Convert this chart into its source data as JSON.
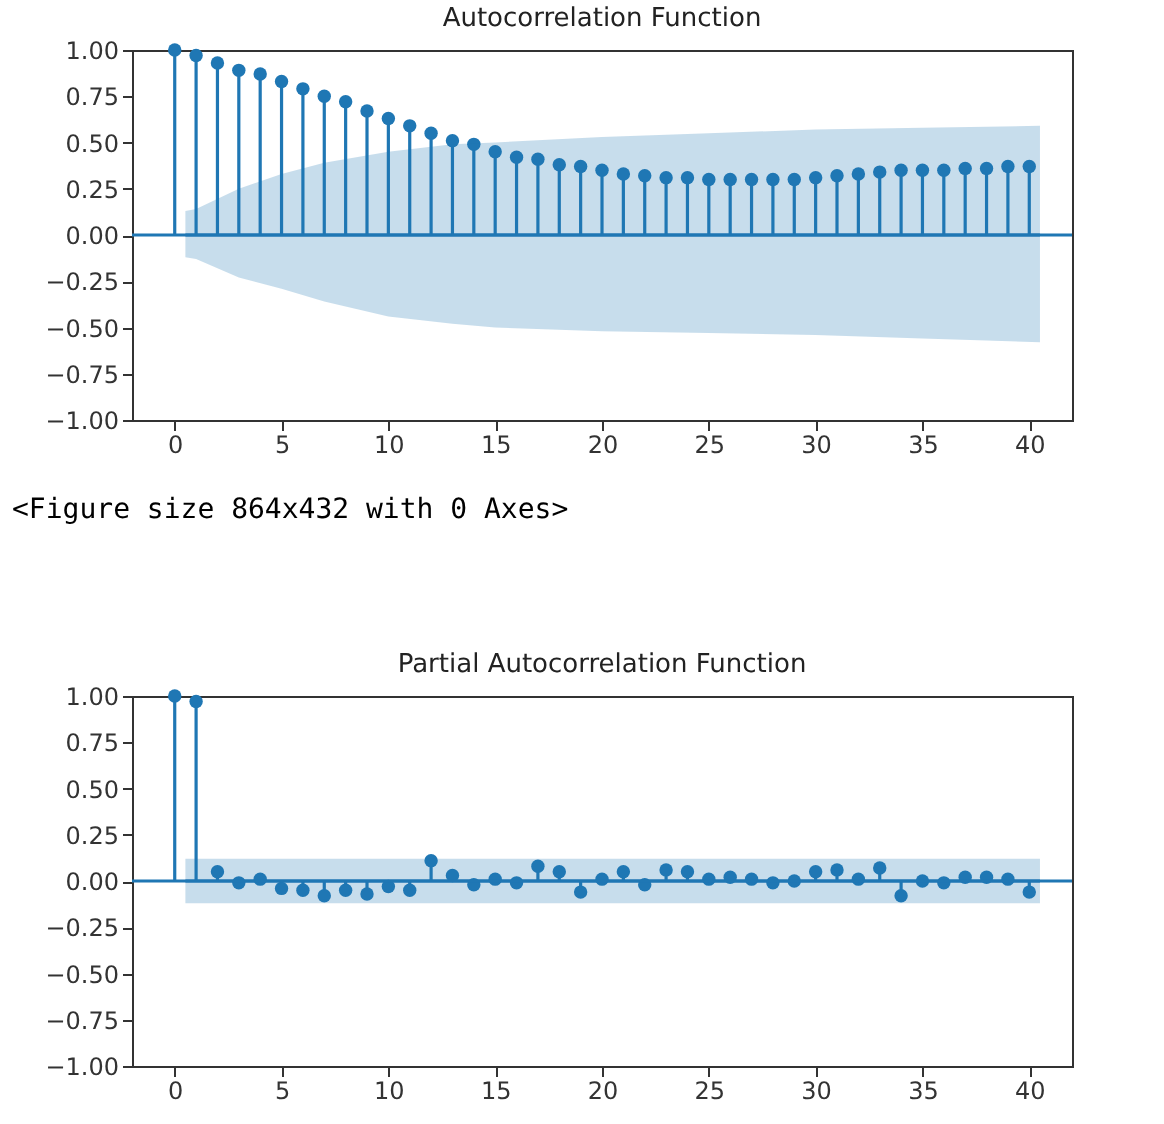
{
  "chart_data": [
    {
      "type": "lollipop",
      "title": "Autocorrelation Function",
      "x": [
        0,
        1,
        2,
        3,
        4,
        5,
        6,
        7,
        8,
        9,
        10,
        11,
        12,
        13,
        14,
        15,
        16,
        17,
        18,
        19,
        20,
        21,
        22,
        23,
        24,
        25,
        26,
        27,
        28,
        29,
        30,
        31,
        32,
        33,
        34,
        35,
        36,
        37,
        38,
        39,
        40
      ],
      "series": [
        {
          "color": "#1f77b4",
          "values": [
            1.0,
            0.97,
            0.93,
            0.89,
            0.87,
            0.83,
            0.79,
            0.75,
            0.72,
            0.67,
            0.63,
            0.59,
            0.55,
            0.51,
            0.49,
            0.45,
            0.42,
            0.41,
            0.38,
            0.37,
            0.35,
            0.33,
            0.32,
            0.31,
            0.31,
            0.3,
            0.3,
            0.3,
            0.3,
            0.3,
            0.31,
            0.32,
            0.33,
            0.34,
            0.35,
            0.35,
            0.35,
            0.36,
            0.36,
            0.37,
            0.37
          ]
        },
        {
          "type": "line",
          "marker": "none",
          "color": "#1f77b4",
          "x": [
            0.5,
            1,
            3,
            5,
            7,
            10,
            13,
            15,
            20,
            25,
            30,
            35,
            40.5
          ],
          "values": [
            0,
            0,
            0,
            0,
            0,
            0,
            0,
            0,
            0,
            0,
            0,
            0,
            0
          ],
          "lower": [
            -0.12,
            -0.13,
            -0.23,
            -0.29,
            -0.36,
            -0.44,
            -0.48,
            -0.5,
            -0.52,
            -0.53,
            -0.54,
            -0.56,
            -0.58
          ],
          "upper": [
            0.13,
            0.14,
            0.25,
            0.33,
            0.39,
            0.45,
            0.49,
            0.5,
            0.53,
            0.55,
            0.57,
            0.58,
            0.59
          ]
        }
      ],
      "ref_lines": [
        {
          "axis": "y",
          "value": 0,
          "color": "#1f77b4"
        }
      ],
      "xlim": [
        -2,
        42
      ],
      "xticks": [
        0,
        5,
        10,
        15,
        20,
        25,
        30,
        35,
        40
      ],
      "ylim": [
        -1,
        1
      ],
      "yticks": [
        {
          "value": -1,
          "label": "−1.00"
        },
        {
          "value": -0.75,
          "label": "−0.75"
        },
        {
          "value": -0.5,
          "label": "−0.50"
        },
        {
          "value": -0.25,
          "label": "−0.25"
        },
        {
          "value": 0,
          "label": "0.00"
        },
        {
          "value": 0.25,
          "label": "0.25"
        },
        {
          "value": 0.5,
          "label": "0.50"
        },
        {
          "value": 0.75,
          "label": "0.75"
        },
        {
          "value": 1,
          "label": "1.00"
        }
      ],
      "annotations": [
        "<Figure size 864x432 with 0 Axes>"
      ],
      "grid": false,
      "legend": false,
      "marker": "circle",
      "line_style": "solid"
    },
    {
      "type": "lollipop",
      "title": "Partial Autocorrelation Function",
      "x": [
        0,
        1,
        2,
        3,
        4,
        5,
        6,
        7,
        8,
        9,
        10,
        11,
        12,
        13,
        14,
        15,
        16,
        17,
        18,
        19,
        20,
        21,
        22,
        23,
        24,
        25,
        26,
        27,
        28,
        29,
        30,
        31,
        32,
        33,
        34,
        35,
        36,
        37,
        38,
        39,
        40
      ],
      "series": [
        {
          "color": "#1f77b4",
          "values": [
            1.0,
            0.97,
            0.05,
            -0.01,
            0.01,
            -0.04,
            -0.05,
            -0.08,
            -0.05,
            -0.07,
            -0.03,
            -0.05,
            0.11,
            0.03,
            -0.02,
            0.01,
            -0.01,
            0.08,
            0.05,
            -0.06,
            0.01,
            0.05,
            -0.02,
            0.06,
            0.05,
            0.01,
            0.02,
            0.01,
            -0.01,
            0.0,
            0.05,
            0.06,
            0.01,
            0.07,
            -0.08,
            0.0,
            -0.01,
            0.02,
            0.02,
            0.01,
            -0.06
          ]
        },
        {
          "type": "line",
          "marker": "none",
          "color": "#1f77b4",
          "x": [
            0.5,
            40.5
          ],
          "values": [
            0,
            0
          ],
          "lower": [
            -0.12,
            -0.12
          ],
          "upper": [
            0.12,
            0.12
          ]
        }
      ],
      "ref_lines": [
        {
          "axis": "y",
          "value": 0,
          "color": "#1f77b4"
        }
      ],
      "xlim": [
        -2,
        42
      ],
      "xticks": [
        0,
        5,
        10,
        15,
        20,
        25,
        30,
        35,
        40
      ],
      "ylim": [
        -1,
        1
      ],
      "yticks": [
        {
          "value": -1,
          "label": "−1.00"
        },
        {
          "value": -0.75,
          "label": "−0.75"
        },
        {
          "value": -0.5,
          "label": "−0.50"
        },
        {
          "value": -0.25,
          "label": "−0.25"
        },
        {
          "value": 0,
          "label": "0.00"
        },
        {
          "value": 0.25,
          "label": "0.25"
        },
        {
          "value": 0.5,
          "label": "0.50"
        },
        {
          "value": 0.75,
          "label": "0.75"
        },
        {
          "value": 1,
          "label": "1.00"
        }
      ],
      "grid": false,
      "legend": false,
      "marker": "circle",
      "line_style": "solid"
    }
  ]
}
